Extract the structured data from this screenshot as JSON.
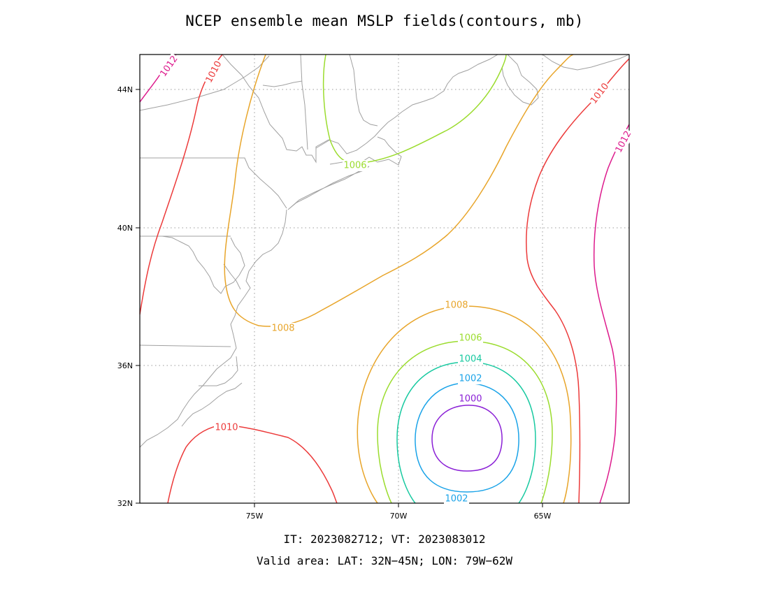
{
  "title": "NCEP ensemble mean MSLP fields(contours, mb)",
  "footer": {
    "it_vt": "IT: 2023082712; VT: 2023083012",
    "valid_area": "Valid area: LAT: 32N−45N; LON: 79W−62W"
  },
  "axes": {
    "lat_ticks": [
      "44N",
      "40N",
      "36N",
      "32N"
    ],
    "lon_ticks": [
      "75W",
      "70W",
      "65W"
    ]
  },
  "chart_data": {
    "type": "contour-map",
    "variable": "mean sea level pressure",
    "units": "mb",
    "lat_range": [
      32,
      45
    ],
    "lon_range": [
      -79,
      -62
    ],
    "grid": true,
    "contour_levels": [
      1000,
      1002,
      1004,
      1006,
      1008,
      1010,
      1012
    ],
    "colors": {
      "1000": "#8a1fd6",
      "1002": "#1aa3e8",
      "1004": "#17c9a0",
      "1006": "#9bdc2e",
      "1008": "#e8a52a",
      "1010": "#ec3a3a",
      "1012": "#dd1a8c",
      "land_outline": "#a0a0a0",
      "grid": "#9a9a9a"
    },
    "labels": [
      {
        "text": "1012",
        "level": 1012
      },
      {
        "text": "1010",
        "level": 1010
      },
      {
        "text": "1010",
        "level": 1010
      },
      {
        "text": "1012",
        "level": 1012
      },
      {
        "text": "1006",
        "level": 1006
      },
      {
        "text": "1008",
        "level": 1008
      },
      {
        "text": "1008",
        "level": 1008
      },
      {
        "text": "1006",
        "level": 1006
      },
      {
        "text": "1004",
        "level": 1004
      },
      {
        "text": "1002",
        "level": 1002
      },
      {
        "text": "1000",
        "level": 1000
      },
      {
        "text": "1002",
        "level": 1002
      },
      {
        "text": "1010",
        "level": 1010
      }
    ]
  }
}
